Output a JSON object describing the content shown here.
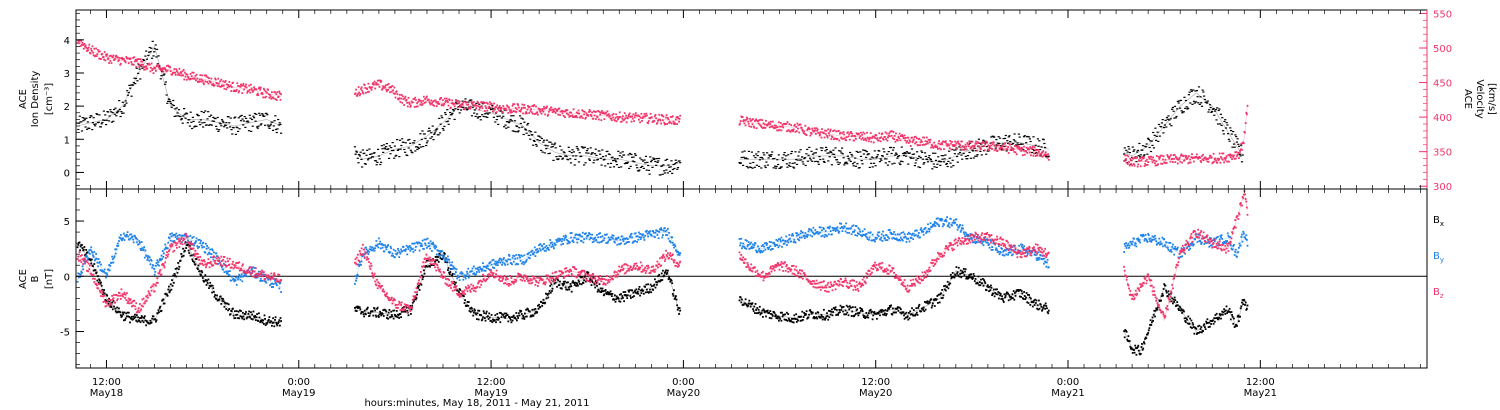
{
  "chart_data": [
    {
      "type": "scatter",
      "panel": "top",
      "ylabel": [
        "ACE",
        "Ion Density",
        "[cm⁻³]"
      ],
      "ylim": [
        -0.5,
        4.9
      ],
      "yticks": [
        0,
        1,
        2,
        3,
        4
      ],
      "ylabel_right": [
        "ACE",
        "Velocity",
        "[km/s]"
      ],
      "ylim_right": [
        296,
        555
      ],
      "yticks_right": [
        300,
        350,
        400,
        450,
        500,
        550
      ],
      "series": [
        {
          "name": "",
          "color": "#000000",
          "axis": "left",
          "segments": [
            {
              "x": [
                10.2,
                11,
                12,
                13,
                14,
                15,
                16,
                17,
                18,
                19,
                20,
                21,
                22,
                22.9
              ],
              "y": [
                1.4,
                1.5,
                1.6,
                2.0,
                3.0,
                3.8,
                2.0,
                1.6,
                1.6,
                1.5,
                1.4,
                1.5,
                1.6,
                1.4
              ]
            },
            {
              "x": [
                27.5,
                28,
                29,
                30,
                31,
                32,
                33,
                34,
                35,
                36,
                37,
                38,
                39,
                40,
                41,
                42,
                43,
                44,
                45,
                46,
                47,
                47.8
              ],
              "y": [
                0.6,
                0.4,
                0.5,
                0.7,
                0.8,
                1.1,
                1.5,
                2.0,
                1.9,
                1.8,
                1.6,
                1.4,
                0.9,
                0.6,
                0.5,
                0.5,
                0.4,
                0.4,
                0.3,
                0.2,
                0.2,
                0.3
              ]
            },
            {
              "x": [
                51.5,
                52,
                53,
                54,
                55,
                56,
                57,
                58,
                59,
                60,
                61,
                62,
                63,
                64,
                65,
                66,
                67,
                68,
                69,
                70,
                70.8
              ],
              "y": [
                0.4,
                0.4,
                0.4,
                0.4,
                0.4,
                0.5,
                0.5,
                0.5,
                0.4,
                0.4,
                0.5,
                0.5,
                0.4,
                0.3,
                0.5,
                0.7,
                0.8,
                0.9,
                0.9,
                0.8,
                0.7
              ]
            },
            {
              "x": [
                75.5,
                76,
                77,
                78,
                79,
                80,
                81,
                82,
                82.9
              ],
              "y": [
                0.6,
                0.5,
                0.8,
                1.4,
                2.0,
                2.4,
                2.0,
                1.2,
                0.5
              ]
            }
          ]
        },
        {
          "name": "",
          "color": "#f0356a",
          "axis": "right",
          "segments": [
            {
              "x": [
                10.2,
                11,
                12,
                13,
                14,
                15,
                16,
                17,
                18,
                19,
                20,
                21,
                22,
                22.9
              ],
              "y": [
                512,
                497,
                486,
                482,
                479,
                469,
                469,
                460,
                455,
                450,
                443,
                440,
                434,
                430
              ]
            },
            {
              "x": [
                27.5,
                28,
                29,
                29.8,
                30.5,
                31,
                32,
                33,
                34,
                35,
                36,
                37,
                38,
                39,
                40,
                41,
                42,
                43,
                44,
                45,
                46,
                47,
                47.8
              ],
              "y": [
                434,
                441,
                447,
                440,
                425,
                420,
                425,
                421,
                418,
                417,
                415,
                412,
                412,
                410,
                408,
                406,
                404,
                402,
                400,
                399,
                398,
                396,
                395
              ]
            },
            {
              "x": [
                51.5,
                52,
                53,
                54,
                55,
                56,
                57,
                58,
                59,
                60,
                61,
                62,
                63,
                64,
                65,
                66,
                67,
                68,
                69,
                70,
                70.8
              ],
              "y": [
                395,
                393,
                389,
                387,
                385,
                378,
                376,
                372,
                372,
                369,
                373,
                365,
                365,
                359,
                360,
                358,
                358,
                356,
                352,
                350,
                345
              ]
            },
            {
              "x": [
                75.5,
                76,
                77,
                78,
                79,
                80,
                81,
                82,
                82.7,
                83,
                83.2
              ],
              "y": [
                340,
                335,
                336,
                338,
                339,
                340,
                340,
                342,
                348,
                370,
                418
              ]
            }
          ]
        }
      ]
    },
    {
      "type": "scatter",
      "panel": "bottom",
      "ylabel": [
        "ACE",
        "B",
        "[nT]"
      ],
      "ylim": [
        -8.3,
        7.9
      ],
      "yticks": [
        -5,
        0,
        5
      ],
      "zero_line": true,
      "xlabel": "hours:minutes, May 18, 2011 - May 21, 2011",
      "xlim": [
        10.1,
        94.4
      ],
      "xticks": [
        {
          "x": 12,
          "label": "12:00",
          "sublabel": "May18"
        },
        {
          "x": 24,
          "label": "0:00",
          "sublabel": "May19"
        },
        {
          "x": 36,
          "label": "12:00",
          "sublabel": "May19"
        },
        {
          "x": 48,
          "label": "0:00",
          "sublabel": "May20"
        },
        {
          "x": 60,
          "label": "12:00",
          "sublabel": "May20"
        },
        {
          "x": 72,
          "label": "0:00",
          "sublabel": "May21"
        },
        {
          "x": 84,
          "label": "12:00",
          "sublabel": "May21"
        }
      ],
      "series": [
        {
          "name": "B",
          "sub": "x",
          "color": "#000000",
          "segments": [
            {
              "x": [
                10.2,
                11,
                12,
                13,
                14,
                15,
                16,
                17,
                18,
                19,
                20,
                21,
                22,
                22.9
              ],
              "y": [
                3,
                1.5,
                -2,
                -3.5,
                -4,
                -4,
                -1,
                3,
                0,
                -2,
                -3.5,
                -3.5,
                -4,
                -4.2
              ]
            },
            {
              "x": [
                27.5,
                28,
                29,
                30,
                31,
                32,
                33,
                34,
                35,
                36,
                37,
                38,
                39,
                40,
                41,
                42,
                43,
                44,
                45,
                46,
                47,
                47.8
              ],
              "y": [
                -3,
                -3.2,
                -3.3,
                -3.5,
                -3,
                1,
                2,
                -1.5,
                -3.5,
                -3.7,
                -3.8,
                -3.5,
                -3,
                -0.5,
                -1,
                0,
                -1.5,
                -2,
                -1.5,
                -1,
                0.5,
                -3.5
              ]
            },
            {
              "x": [
                51.5,
                52,
                53,
                54,
                55,
                56,
                57,
                58,
                59,
                60,
                61,
                62,
                63,
                64,
                65,
                66,
                67,
                68,
                69,
                70,
                70.8
              ],
              "y": [
                -2,
                -2.5,
                -3.3,
                -3.6,
                -3.8,
                -3.4,
                -3.5,
                -3,
                -3.3,
                -3.5,
                -3,
                -3.5,
                -2.8,
                -2,
                0.5,
                0,
                -1,
                -2,
                -1.5,
                -2.5,
                -3
              ]
            },
            {
              "x": [
                75.5,
                76,
                76.5,
                77,
                77.5,
                78,
                79,
                80,
                81,
                82,
                82.5,
                83,
                83.2
              ],
              "y": [
                -5,
                -6.5,
                -6.8,
                -5,
                -3,
                -1,
                -3,
                -5,
                -4,
                -3,
                -4.5,
                -2,
                -3
              ]
            }
          ]
        },
        {
          "name": "B",
          "sub": "y",
          "color": "#1f82e8",
          "segments": [
            {
              "x": [
                10.2,
                11,
                12,
                13,
                14,
                15,
                16,
                17,
                18,
                19,
                20,
                21,
                22,
                22.9
              ],
              "y": [
                -0.3,
                2.5,
                0,
                3.8,
                3.2,
                0.5,
                3.5,
                3.5,
                2.8,
                1.5,
                -0.5,
                0.5,
                -0.3,
                -1
              ]
            },
            {
              "x": [
                27.5,
                28,
                29,
                30,
                31,
                32,
                33,
                34,
                35,
                36,
                37,
                38,
                39,
                40,
                41,
                42,
                43,
                44,
                45,
                46,
                47,
                47.8
              ],
              "y": [
                -0.5,
                2,
                3,
                2,
                2.5,
                3,
                2,
                0,
                0.5,
                1,
                1.5,
                1.5,
                2.5,
                3,
                3.5,
                3.5,
                3.5,
                3.2,
                3.5,
                3.8,
                4,
                2
              ]
            },
            {
              "x": [
                51.5,
                52,
                53,
                54,
                55,
                56,
                57,
                58,
                59,
                60,
                61,
                62,
                63,
                64,
                65,
                66,
                67,
                68,
                69,
                70,
                70.8
              ],
              "y": [
                3,
                2.8,
                2.5,
                3,
                3.5,
                4,
                4,
                4.5,
                4,
                3.5,
                3.8,
                3.5,
                4,
                5,
                4.8,
                3.5,
                3,
                2,
                2.5,
                2,
                1
              ]
            },
            {
              "x": [
                75.5,
                76,
                77,
                78,
                79,
                80,
                81,
                82,
                82.5,
                83,
                83.2
              ],
              "y": [
                2.5,
                3,
                3.5,
                3,
                2,
                3.5,
                3,
                3.5,
                2,
                4,
                3
              ]
            }
          ]
        },
        {
          "name": "B",
          "sub": "z",
          "color": "#f0356a",
          "segments": [
            {
              "x": [
                10.2,
                11,
                12,
                13,
                14,
                15,
                16,
                17,
                18,
                19,
                20,
                21,
                22,
                22.9
              ],
              "y": [
                2,
                0.5,
                -2.5,
                -1.5,
                -3,
                -1,
                2.5,
                3.5,
                1,
                1.5,
                1,
                0.5,
                0,
                -0.3
              ]
            },
            {
              "x": [
                27.5,
                28,
                29,
                30,
                31,
                32,
                33,
                34,
                35,
                36,
                37,
                38,
                39,
                40,
                41,
                42,
                43,
                44,
                45,
                46,
                47,
                47.8
              ],
              "y": [
                1,
                2.5,
                -1,
                -2.5,
                -3,
                2,
                0,
                -1.5,
                -1,
                0.5,
                -0.5,
                0,
                -0.5,
                0,
                0.5,
                0,
                -0.5,
                0.5,
                1,
                0.5,
                2,
                1
              ]
            },
            {
              "x": [
                51.5,
                52,
                53,
                54,
                55,
                56,
                57,
                58,
                59,
                60,
                61,
                62,
                63,
                64,
                65,
                66,
                67,
                68,
                69,
                70,
                70.8
              ],
              "y": [
                2,
                1,
                0,
                1,
                0.5,
                -0.5,
                -1,
                -0.5,
                -1,
                1,
                0.5,
                -1,
                0,
                2,
                3,
                3.5,
                3.5,
                3,
                2,
                2.5,
                2
              ]
            },
            {
              "x": [
                75.5,
                76,
                77,
                78,
                79,
                80,
                81,
                82,
                82.5,
                83,
                83.2
              ],
              "y": [
                0.5,
                -2,
                0,
                -4,
                2,
                4,
                3,
                2.5,
                5,
                7.5,
                6
              ]
            }
          ]
        }
      ]
    }
  ]
}
